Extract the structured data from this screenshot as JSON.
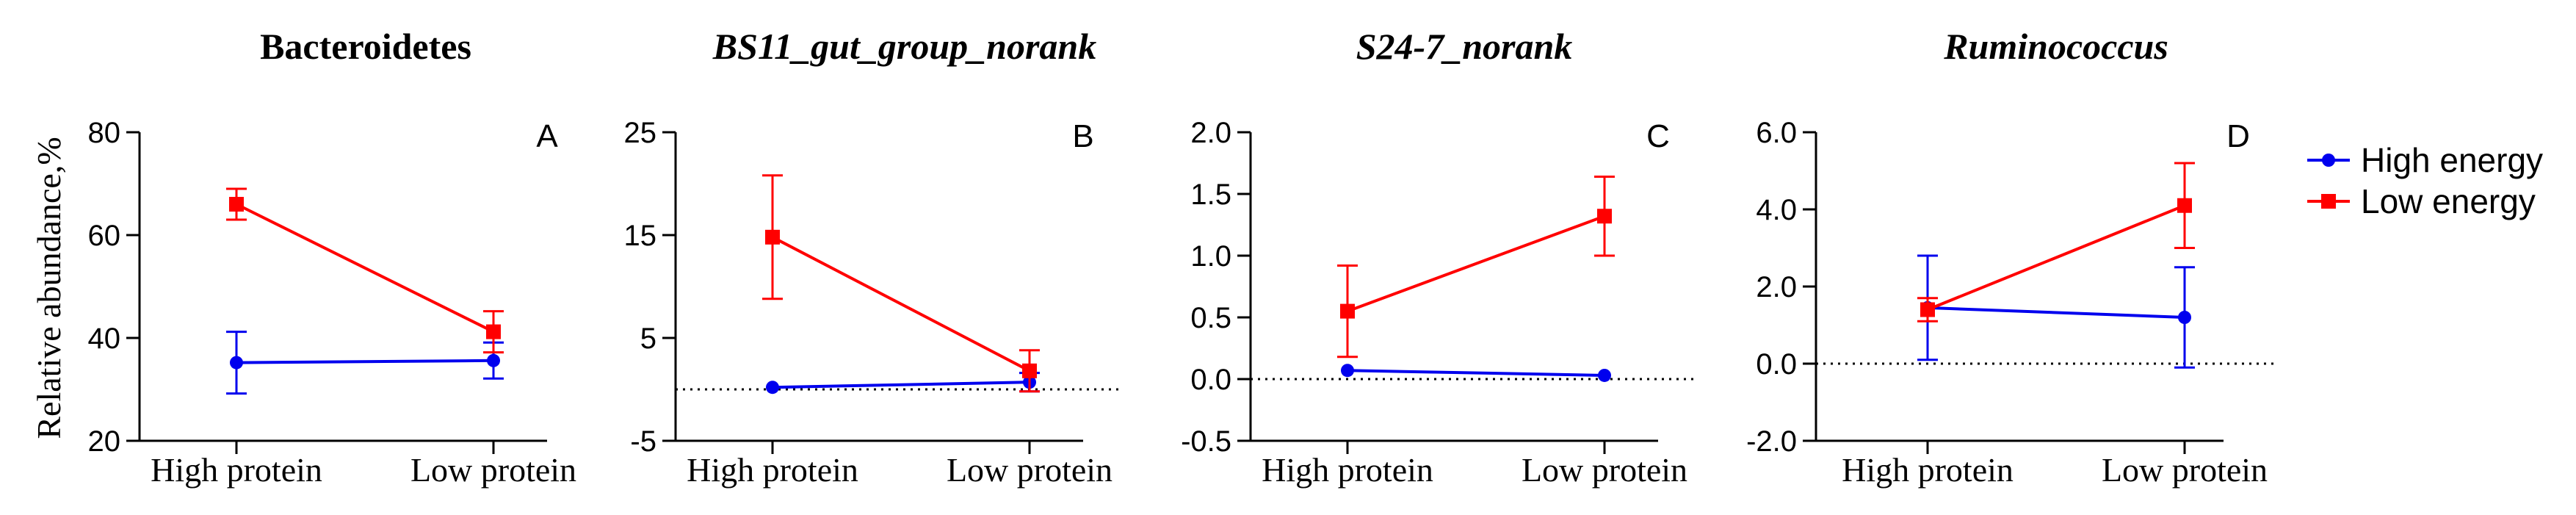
{
  "y_axis_label": "Relative abundance,%",
  "legend": [
    {
      "name": "High energy",
      "color": "#0000ee",
      "marker": "circle"
    },
    {
      "name": "Low energy",
      "color": "#ff0000",
      "marker": "square"
    }
  ],
  "chart_data": [
    {
      "type": "line",
      "panel": "A",
      "title": "Bacteroidetes",
      "title_italic": false,
      "categories": [
        "High protein",
        "Low protein"
      ],
      "ylim": [
        20,
        80
      ],
      "yticks": [
        20,
        40,
        60,
        80
      ],
      "ytick_labels": [
        "20",
        "40",
        "60",
        "80"
      ],
      "zero_line": false,
      "series": [
        {
          "name": "High energy",
          "values": [
            35.2,
            35.6
          ],
          "errors": [
            6,
            3.5
          ]
        },
        {
          "name": "Low energy",
          "values": [
            66,
            41.2
          ],
          "errors": [
            3,
            4
          ]
        }
      ]
    },
    {
      "type": "line",
      "panel": "B",
      "title": "BS11_gut_group_norank",
      "title_italic": true,
      "categories": [
        "High protein",
        "Low protein"
      ],
      "ylim": [
        -5,
        25
      ],
      "yticks": [
        -5,
        5,
        15,
        25
      ],
      "ytick_labels": [
        "-5",
        "5",
        "15",
        "25"
      ],
      "zero_line": true,
      "series": [
        {
          "name": "High energy",
          "values": [
            0.2,
            0.7
          ],
          "errors": [
            0,
            0.9
          ]
        },
        {
          "name": "Low energy",
          "values": [
            14.8,
            1.8
          ],
          "errors": [
            6,
            2
          ]
        }
      ]
    },
    {
      "type": "line",
      "panel": "C",
      "title": "S24-7_norank",
      "title_italic": true,
      "categories": [
        "High protein",
        "Low protein"
      ],
      "ylim": [
        -0.5,
        2.0
      ],
      "yticks": [
        -0.5,
        0,
        0.5,
        1.0,
        1.5,
        2.0
      ],
      "ytick_labels": [
        "-0.5",
        "0.0",
        "0.5",
        "1.0",
        "1.5",
        "2.0"
      ],
      "zero_line": true,
      "series": [
        {
          "name": "High energy",
          "values": [
            0.07,
            0.03
          ],
          "errors": [
            0,
            0
          ]
        },
        {
          "name": "Low energy",
          "values": [
            0.55,
            1.32
          ],
          "errors": [
            0.37,
            0.32
          ]
        }
      ]
    },
    {
      "type": "line",
      "panel": "D",
      "title": "Ruminococcus",
      "title_italic": true,
      "categories": [
        "High protein",
        "Low protein"
      ],
      "ylim": [
        -2.0,
        6.0
      ],
      "yticks": [
        -2,
        0,
        2,
        4,
        6
      ],
      "ytick_labels": [
        "-2.0",
        "0.0",
        "2.0",
        "4.0",
        "6.0"
      ],
      "zero_line": true,
      "series": [
        {
          "name": "High energy",
          "values": [
            1.45,
            1.2
          ],
          "errors": [
            1.35,
            1.3
          ]
        },
        {
          "name": "Low energy",
          "values": [
            1.4,
            4.1
          ],
          "errors": [
            0.3,
            1.1
          ]
        }
      ]
    }
  ]
}
